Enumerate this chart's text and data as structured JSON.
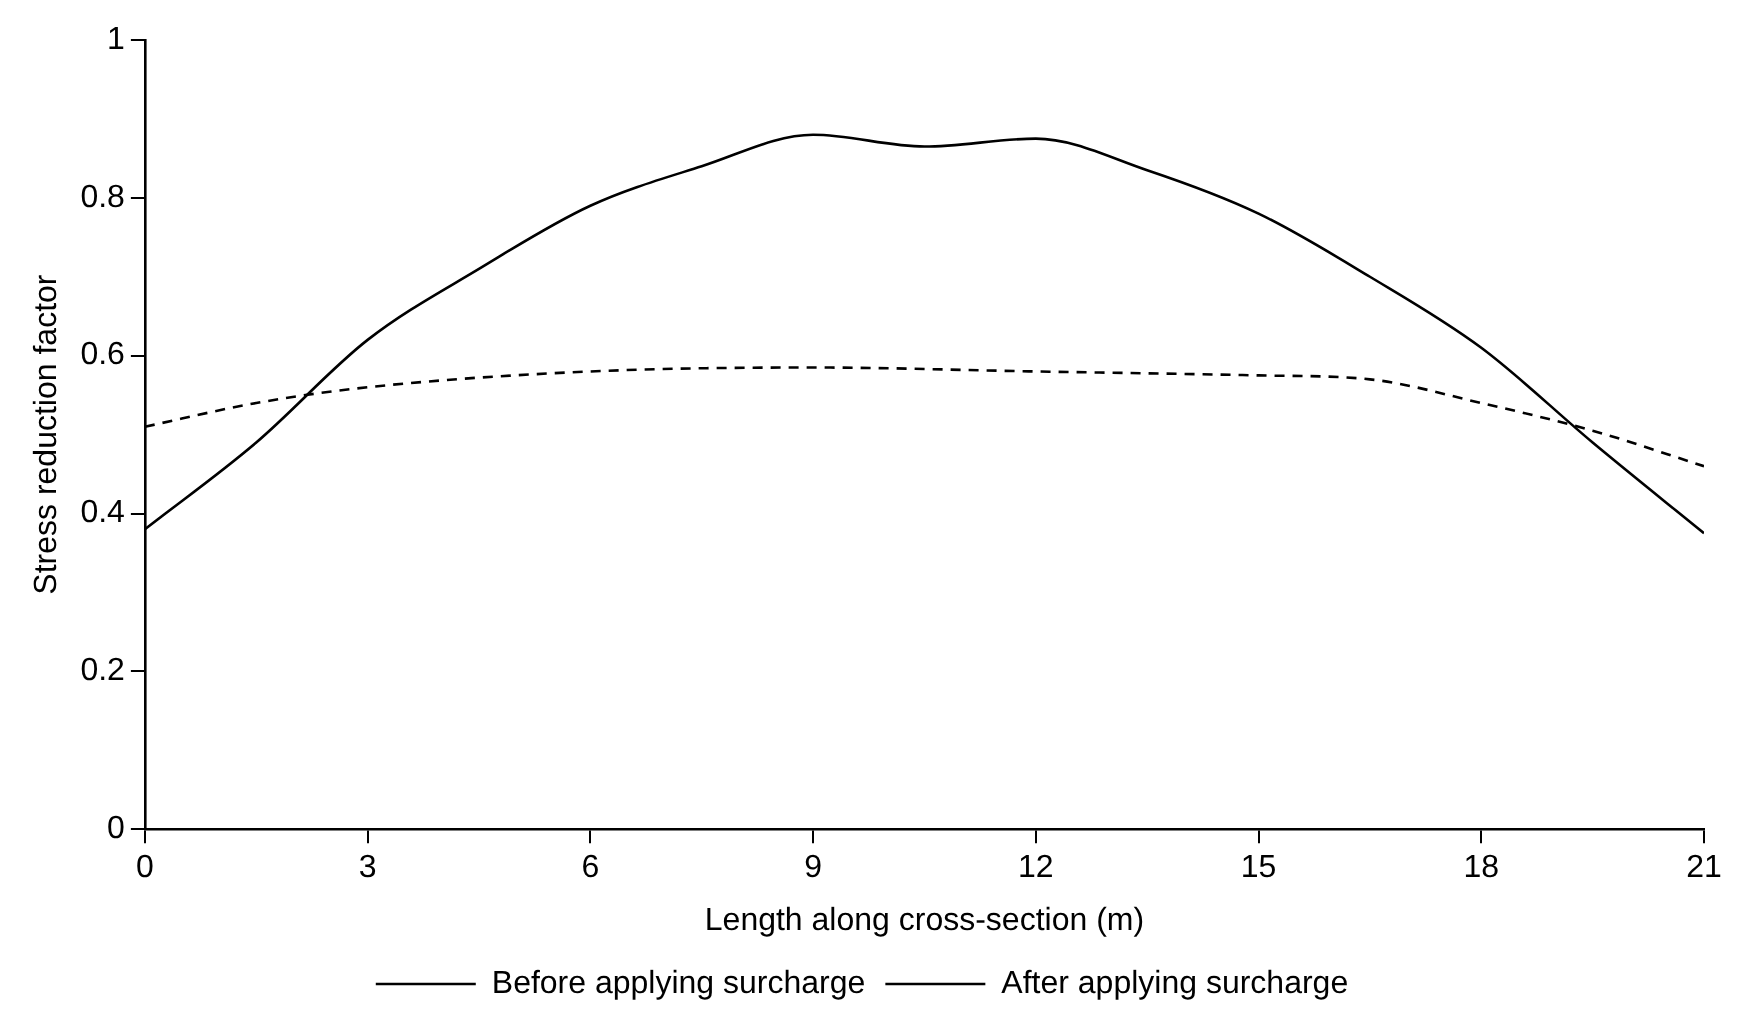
{
  "chart_data": {
    "type": "line",
    "xlabel": "Length along cross-section (m)",
    "ylabel": "Stress reduction factor",
    "xlim": [
      0,
      21
    ],
    "xticks": [
      0,
      3,
      6,
      9,
      12,
      15,
      18,
      21
    ],
    "ylim": [
      0,
      1
    ],
    "yticks": [
      0,
      0.2,
      0.4,
      0.6,
      0.8,
      1
    ],
    "grid": false,
    "legend": "bottom",
    "marker": "none",
    "series": [
      {
        "name": "Before applying surcharge",
        "color": "#000000",
        "line_style": "solid",
        "x": [
          0,
          1.5,
          3,
          4.5,
          6,
          7.5,
          9,
          10.5,
          12,
          13.5,
          15,
          16.5,
          18,
          19.5,
          21
        ],
        "values": [
          0.38,
          0.49,
          0.62,
          0.71,
          0.79,
          0.84,
          0.88,
          0.865,
          0.875,
          0.835,
          0.78,
          0.7,
          0.61,
          0.49,
          0.375
        ]
      },
      {
        "name": "After applying surcharge",
        "color": "#000000",
        "line_style": "dashed",
        "x": [
          0,
          1.5,
          3,
          6,
          9,
          12,
          15,
          16.5,
          18,
          19.5,
          21
        ],
        "values": [
          0.51,
          0.54,
          0.56,
          0.58,
          0.585,
          0.58,
          0.575,
          0.57,
          0.54,
          0.505,
          0.46
        ]
      }
    ]
  }
}
